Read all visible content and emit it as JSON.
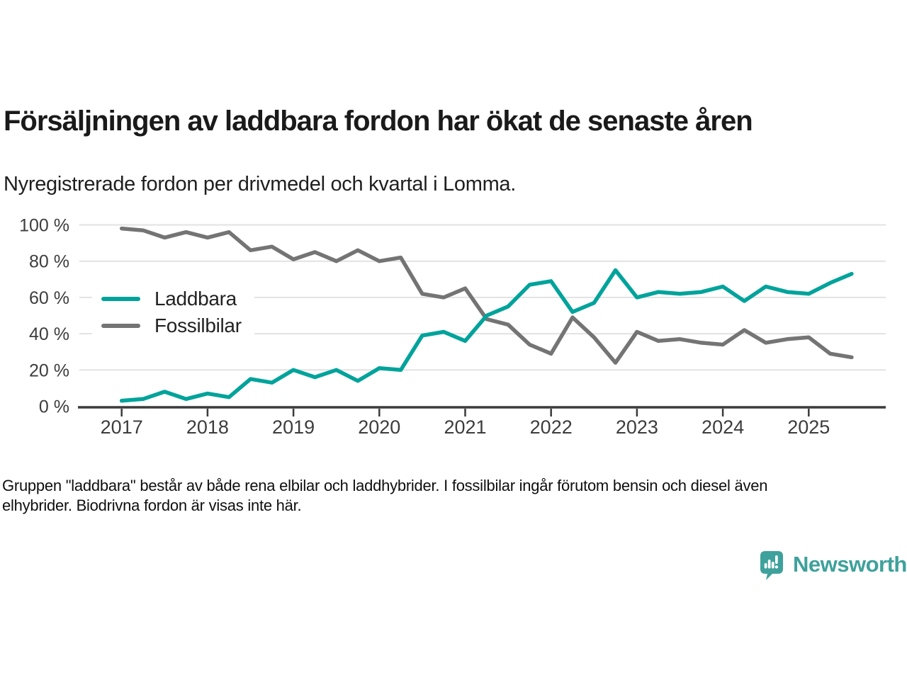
{
  "header": {
    "title": "Försäljningen av laddbara fordon har ökat de senaste åren",
    "subtitle": "Nyregistrerade fordon per drivmedel och kvartal i Lomma."
  },
  "footnote_lines": [
    "Gruppen \"laddbara\" består av både rena elbilar och laddhybrider. I fossilbilar ingår förutom bensin och diesel även",
    "elhybrider. Biodrivna fordon är visas inte här."
  ],
  "brand": {
    "name": "Newsworthy",
    "logo_icon": "newsworthy-speech-bubble-bar-chart-icon",
    "color": "#3EA19B"
  },
  "style": {
    "grid_color": "#E2E2E2",
    "axis_color": "#3B3B3B",
    "tick_label_color": "#3D3D3D",
    "background": "#FFFFFF"
  },
  "chart_data": {
    "type": "line",
    "title": "Försäljningen av laddbara fordon har ökat de senaste åren",
    "subtitle": "Nyregistrerade fordon per drivmedel och kvartal i Lomma.",
    "xlabel": "",
    "ylabel": "",
    "x_unit": "quarter",
    "x_start": "2017 Q1",
    "x_end": "2025 Q3",
    "x_tick_labels": [
      "2017",
      "2018",
      "2019",
      "2020",
      "2021",
      "2022",
      "2023",
      "2024",
      "2025"
    ],
    "ylim": [
      0,
      100
    ],
    "yticks": [
      {
        "value": 0,
        "label": "0 %"
      },
      {
        "value": 20,
        "label": "20 %"
      },
      {
        "value": 40,
        "label": "40 %"
      },
      {
        "value": 60,
        "label": "60 %"
      },
      {
        "value": 80,
        "label": "80 %"
      },
      {
        "value": 100,
        "label": "100 %"
      }
    ],
    "grid": "horizontal",
    "legend_position": "inside-left",
    "series": [
      {
        "name": "Laddbara",
        "color": "#00A39B",
        "values": [
          3,
          4,
          8,
          4,
          7,
          5,
          15,
          13,
          20,
          16,
          20,
          14,
          21,
          20,
          39,
          41,
          36,
          50,
          55,
          67,
          69,
          52,
          57,
          75,
          60,
          63,
          62,
          63,
          66,
          58,
          66,
          63,
          62,
          68,
          73
        ]
      },
      {
        "name": "Fossilbilar",
        "color": "#747474",
        "values": [
          98,
          97,
          93,
          96,
          93,
          96,
          86,
          88,
          81,
          85,
          80,
          86,
          80,
          82,
          62,
          60,
          65,
          48,
          45,
          34,
          29,
          49,
          38,
          24,
          41,
          36,
          37,
          35,
          34,
          42,
          35,
          37,
          38,
          29,
          27
        ]
      }
    ]
  }
}
